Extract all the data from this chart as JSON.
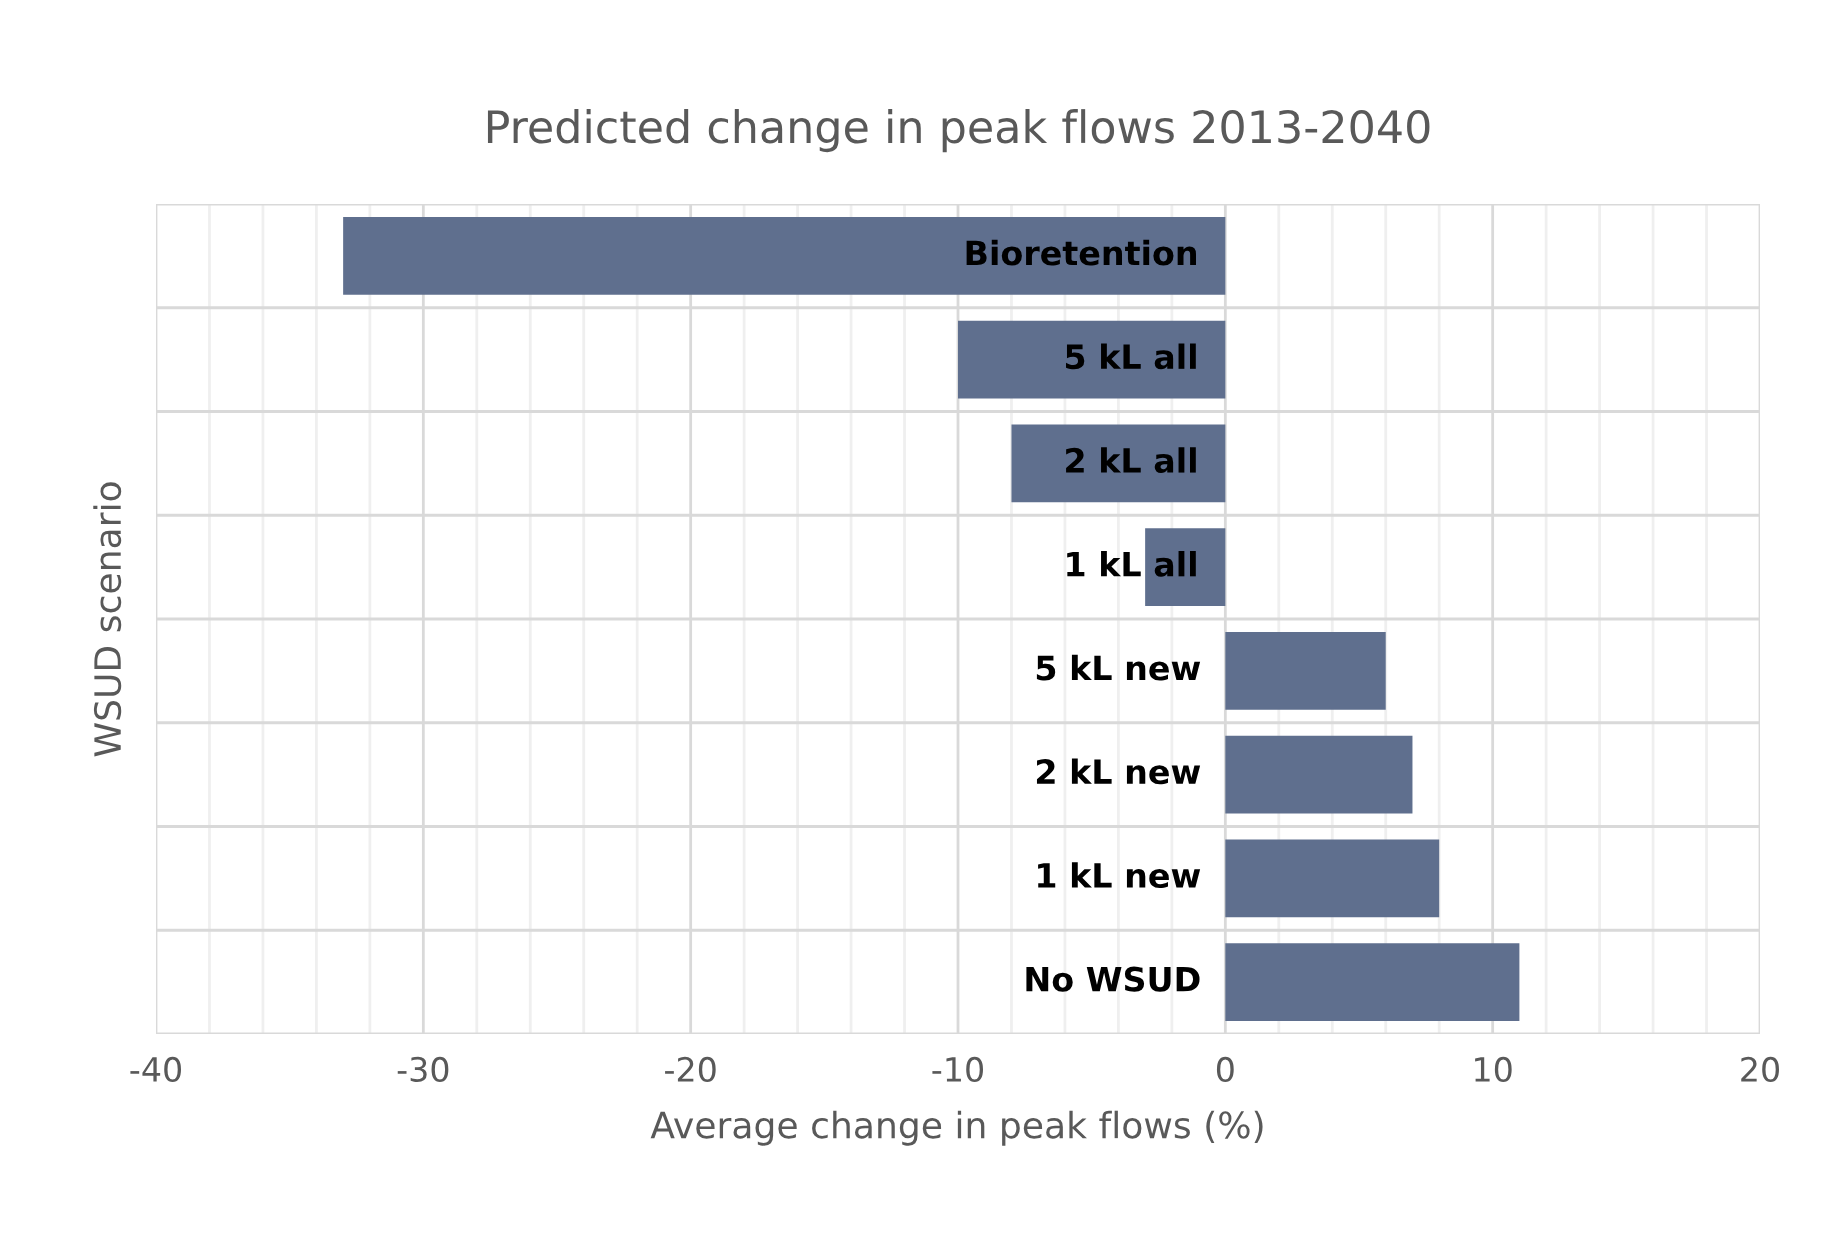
{
  "chart_data": {
    "type": "bar",
    "orientation": "horizontal",
    "title": "Predicted change in peak flows 2013-2040",
    "xlabel": "Average change in peak flows (%)",
    "ylabel": "WSUD scenario",
    "categories": [
      "Bioretention",
      "5 kL all",
      "2 kL all",
      "1 kL all",
      "5 kL new",
      "2 kL new",
      "1 kL new",
      "No WSUD"
    ],
    "values": [
      -33,
      -10,
      -8,
      -3,
      6,
      7,
      8,
      11
    ],
    "color": "#5f6f8e",
    "xlim": [
      -40,
      20
    ],
    "xticks": [
      -40,
      {
        "value": -38,
        "label": null
      },
      {
        "value": -36,
        "label": null
      },
      {
        "value": -34,
        "label": null
      },
      {
        "value": -32,
        "label": null
      },
      -30,
      {
        "value": -28,
        "label": null
      },
      {
        "value": -26,
        "label": null
      },
      {
        "value": -24,
        "label": null
      },
      {
        "value": -22,
        "label": null
      },
      -20,
      {
        "value": -18,
        "label": null
      },
      {
        "value": -16,
        "label": null
      },
      {
        "value": -14,
        "label": null
      },
      {
        "value": -12,
        "label": null
      },
      -10,
      {
        "value": -8,
        "label": null
      },
      {
        "value": -6,
        "label": null
      },
      {
        "value": -4,
        "label": null
      },
      {
        "value": -2,
        "label": null
      },
      0,
      {
        "value": 2,
        "label": null
      },
      {
        "value": 4,
        "label": null
      },
      {
        "value": 6,
        "label": null
      },
      {
        "value": 8,
        "label": null
      },
      10,
      {
        "value": 12,
        "label": null
      },
      {
        "value": 14,
        "label": null
      },
      {
        "value": 16,
        "label": null
      },
      {
        "value": 18,
        "label": null
      },
      20
    ],
    "grid": true,
    "legend": false
  }
}
